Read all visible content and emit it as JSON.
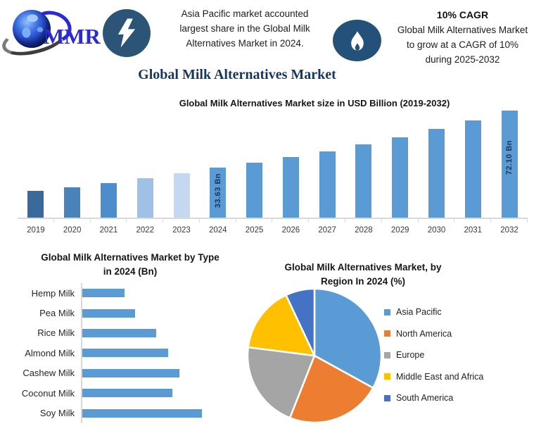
{
  "header": {
    "logo": {
      "text": "MMR"
    },
    "highlight_lines": [
      "Asia Pacific market accounted",
      "largest share in the Global Milk",
      "Alternatives Market in 2024."
    ],
    "cagr": {
      "title": "10% CAGR",
      "body_lines": [
        "Global Milk Alternatives Market",
        "to grow at a CAGR of 10%",
        "during 2025-2032"
      ]
    },
    "badge_icons": [
      "lightning-icon",
      "flame-icon"
    ],
    "badge_color_bolt": "#2B5476",
    "badge_color_flame": "#24517A"
  },
  "page_title": {
    "text": "Global Milk Alternatives Market",
    "color": "#17365D"
  },
  "chart_data": [
    {
      "id": "market_size",
      "type": "bar",
      "title": "Global Milk Alternatives Market size in USD Billion (2019-2032)",
      "unit": "USD Billion",
      "categories": [
        "2019",
        "2020",
        "2021",
        "2022",
        "2023",
        "2024",
        "2025",
        "2026",
        "2027",
        "2028",
        "2029",
        "2030",
        "2031",
        "2032"
      ],
      "values": [
        18.0,
        20.5,
        23.5,
        26.5,
        30.0,
        33.63,
        37.0,
        40.7,
        44.8,
        49.2,
        54.2,
        59.6,
        65.5,
        72.1
      ],
      "values_estimated_except_labeled": true,
      "data_labels": {
        "2024": "33.63 Bn",
        "2032": "72.10 Bn"
      },
      "bar_colors": [
        "#3A6A9B",
        "#4A83B9",
        "#4D8DCB",
        "#9FC0E7",
        "#C6D8F0",
        "#5B9BD5",
        "#5B9BD5",
        "#5B9BD5",
        "#5B9BD5",
        "#5B9BD5",
        "#5B9BD5",
        "#5B9BD5",
        "#5B9BD5",
        "#5B9BD5"
      ],
      "axis_color": "#D9D9D9",
      "grid": false,
      "legend": false
    },
    {
      "id": "by_type",
      "type": "bar",
      "orientation": "horizontal",
      "title": "Global Milk Alternatives Market by Type in 2024 (Bn)",
      "categories": [
        "Hemp Milk",
        "Pea Milk",
        "Rice Milk",
        "Almond Milk",
        "Cashew Milk",
        "Coconut Milk",
        "Soy Milk"
      ],
      "values": [
        3.5,
        4.4,
        6.2,
        7.2,
        8.1,
        7.5,
        10.0
      ],
      "values_estimated": true,
      "bar_color": "#5B9BD5",
      "axis_color": "#D8D8D8",
      "grid": false,
      "legend": false
    },
    {
      "id": "by_region",
      "type": "pie",
      "title": "Global Milk Alternatives Market, by Region In 2024 (%)",
      "labels": [
        "Asia Pacific",
        "North America",
        "Europe",
        "Middle East and Africa",
        "South America"
      ],
      "values": [
        33,
        23,
        21,
        16,
        7
      ],
      "values_estimated": true,
      "colors": [
        "#5B9BD5",
        "#ED7D31",
        "#A5A5A5",
        "#FFC000",
        "#4472C4"
      ],
      "start_angle_deg": 0,
      "clockwise": true,
      "slice_border_color": "#FFFFFF",
      "legend_position": "right"
    }
  ],
  "palette": {
    "primary_blue": "#5B9BD5",
    "title_navy": "#17365D",
    "bar_label_navy": "#17375E",
    "logo_blue": "#2B2BD0"
  }
}
